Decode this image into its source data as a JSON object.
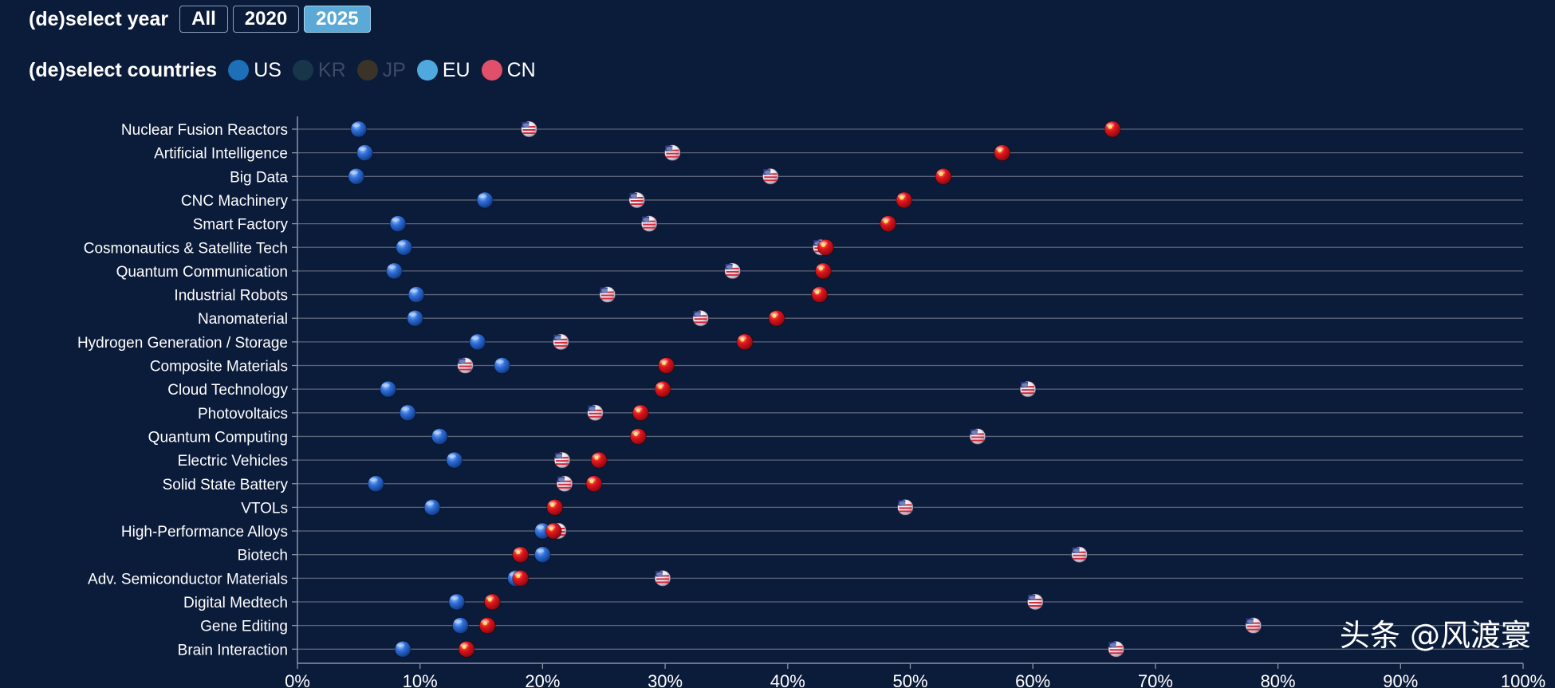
{
  "controls": {
    "year_label": "(de)select year",
    "year_buttons": [
      "All",
      "2020",
      "2025"
    ],
    "active_year": "2025",
    "countries_label": "(de)select countries",
    "countries": [
      {
        "code": "US",
        "color": "#1d6fb8",
        "active": true
      },
      {
        "code": "KR",
        "color": "#18364a",
        "active": false
      },
      {
        "code": "JP",
        "color": "#3b3328",
        "active": false
      },
      {
        "code": "EU",
        "color": "#4fa9de",
        "active": true
      },
      {
        "code": "CN",
        "color": "#e0506a",
        "active": true
      }
    ]
  },
  "watermark": "头条 @风渡寰",
  "chart_data": {
    "type": "scatter",
    "xlim": [
      0,
      100
    ],
    "x_ticks": [
      "0%",
      "10%",
      "20%",
      "30%",
      "40%",
      "50%",
      "60%",
      "70%",
      "80%",
      "90%",
      "100%"
    ],
    "grid": "horizontal",
    "colors": {
      "EU": "#2f6fd8",
      "US": "#ffffff",
      "CN": "#e0141e"
    },
    "categories": [
      "Nuclear Fusion Reactors",
      "Artificial Intelligence",
      "Big Data",
      "CNC Machinery",
      "Smart Factory",
      "Cosmonautics & Satellite Tech",
      "Quantum Communication",
      "Industrial Robots",
      "Nanomaterial",
      "Hydrogen Generation / Storage",
      "Composite Materials",
      "Cloud Technology",
      "Photovoltaics",
      "Quantum Computing",
      "Electric Vehicles",
      "Solid State Battery",
      "VTOLs",
      "High-Performance Alloys",
      "Biotech",
      "Adv. Semiconductor Materials",
      "Digital Medtech",
      "Gene Editing",
      "Brain Interaction"
    ],
    "series": [
      {
        "name": "EU",
        "values": [
          5.0,
          5.5,
          4.8,
          15.3,
          8.2,
          8.7,
          7.9,
          9.7,
          9.6,
          14.7,
          16.7,
          7.4,
          9.0,
          11.6,
          12.8,
          6.4,
          11.0,
          20.0,
          20.0,
          17.8,
          13.0,
          13.3,
          8.6
        ]
      },
      {
        "name": "US",
        "values": [
          18.9,
          30.6,
          38.6,
          27.7,
          28.7,
          42.7,
          35.5,
          25.3,
          32.9,
          21.5,
          13.7,
          59.6,
          24.3,
          55.5,
          21.6,
          21.8,
          49.6,
          21.3,
          63.8,
          29.8,
          60.2,
          78.0,
          66.8
        ]
      },
      {
        "name": "CN",
        "values": [
          66.5,
          57.5,
          52.7,
          49.5,
          48.2,
          43.1,
          42.9,
          42.6,
          39.1,
          36.5,
          30.1,
          29.8,
          28.0,
          27.8,
          24.6,
          24.2,
          21.0,
          20.9,
          18.2,
          18.2,
          15.9,
          15.5,
          13.8
        ]
      }
    ]
  }
}
